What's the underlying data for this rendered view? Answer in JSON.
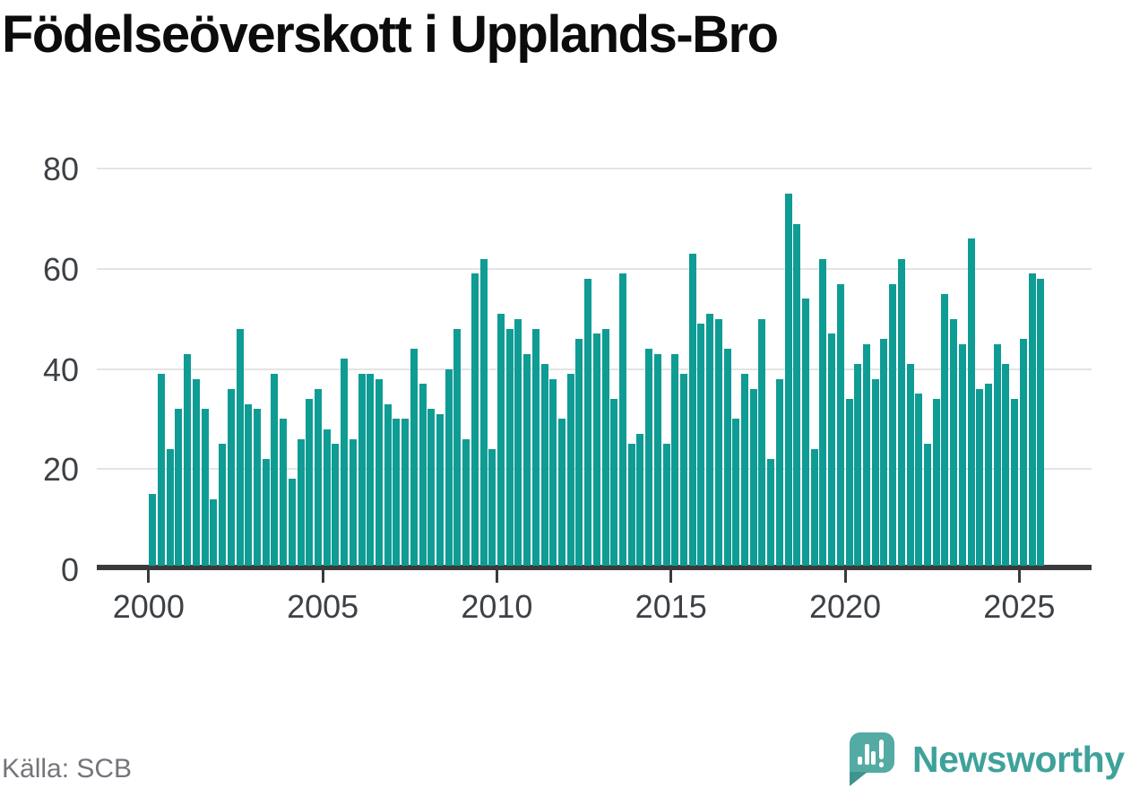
{
  "title": "Födelseöverskott i Upplands-Bro",
  "source_label": "Källa: SCB",
  "brand": {
    "name": "Newsworthy"
  },
  "colors": {
    "background": "#ffffff",
    "bar": "#0f9c94",
    "axis": "#3a3a3c",
    "grid": "#e4e4e6",
    "tick_label": "#3d4146",
    "title_text": "#0c0c0c",
    "source_text": "#74747b",
    "logo_bubble": "#53aba4",
    "logo_tail": "#3f958e",
    "logo_text": "#3ea29a"
  },
  "chart_data": {
    "type": "bar",
    "title": "Födelseöverskott i Upplands-Bro",
    "freq": "quarterly",
    "start": "2000-Q1",
    "end": "2025-Q3",
    "ylim": [
      0,
      80
    ],
    "y_ticks": [
      0,
      20,
      40,
      60,
      80
    ],
    "x_tick_years": [
      2000,
      2005,
      2010,
      2015,
      2020,
      2025
    ],
    "grid": "horizontal",
    "legend": "none",
    "series_name": "Födelseöverskott",
    "data_by_year": [
      {
        "year": 2000,
        "values": [
          15,
          39,
          24,
          32
        ]
      },
      {
        "year": 2001,
        "values": [
          43,
          38,
          32,
          14
        ]
      },
      {
        "year": 2002,
        "values": [
          25,
          36,
          48,
          33
        ]
      },
      {
        "year": 2003,
        "values": [
          32,
          22,
          39,
          30
        ]
      },
      {
        "year": 2004,
        "values": [
          18,
          26,
          34,
          36
        ]
      },
      {
        "year": 2005,
        "values": [
          28,
          25,
          42,
          26
        ]
      },
      {
        "year": 2006,
        "values": [
          39,
          39,
          38,
          33
        ]
      },
      {
        "year": 2007,
        "values": [
          30,
          30,
          44,
          37
        ]
      },
      {
        "year": 2008,
        "values": [
          32,
          31,
          40,
          48
        ]
      },
      {
        "year": 2009,
        "values": [
          26,
          59,
          62,
          24
        ]
      },
      {
        "year": 2010,
        "values": [
          51,
          48,
          50,
          43
        ]
      },
      {
        "year": 2011,
        "values": [
          48,
          41,
          38,
          30
        ]
      },
      {
        "year": 2012,
        "values": [
          39,
          46,
          58,
          47
        ]
      },
      {
        "year": 2013,
        "values": [
          48,
          34,
          59,
          25
        ]
      },
      {
        "year": 2014,
        "values": [
          27,
          44,
          43,
          25
        ]
      },
      {
        "year": 2015,
        "values": [
          43,
          39,
          63,
          49
        ]
      },
      {
        "year": 2016,
        "values": [
          51,
          50,
          44,
          30
        ]
      },
      {
        "year": 2017,
        "values": [
          39,
          36,
          50,
          22
        ]
      },
      {
        "year": 2018,
        "values": [
          38,
          75,
          69,
          54
        ]
      },
      {
        "year": 2019,
        "values": [
          24,
          62,
          47,
          57
        ]
      },
      {
        "year": 2020,
        "values": [
          34,
          41,
          45,
          38
        ]
      },
      {
        "year": 2021,
        "values": [
          46,
          57,
          62,
          41
        ]
      },
      {
        "year": 2022,
        "values": [
          35,
          25,
          34,
          55
        ]
      },
      {
        "year": 2023,
        "values": [
          50,
          45,
          66,
          36
        ]
      },
      {
        "year": 2024,
        "values": [
          37,
          45,
          41,
          34
        ]
      },
      {
        "year": 2025,
        "values": [
          46,
          59,
          58
        ]
      }
    ]
  }
}
